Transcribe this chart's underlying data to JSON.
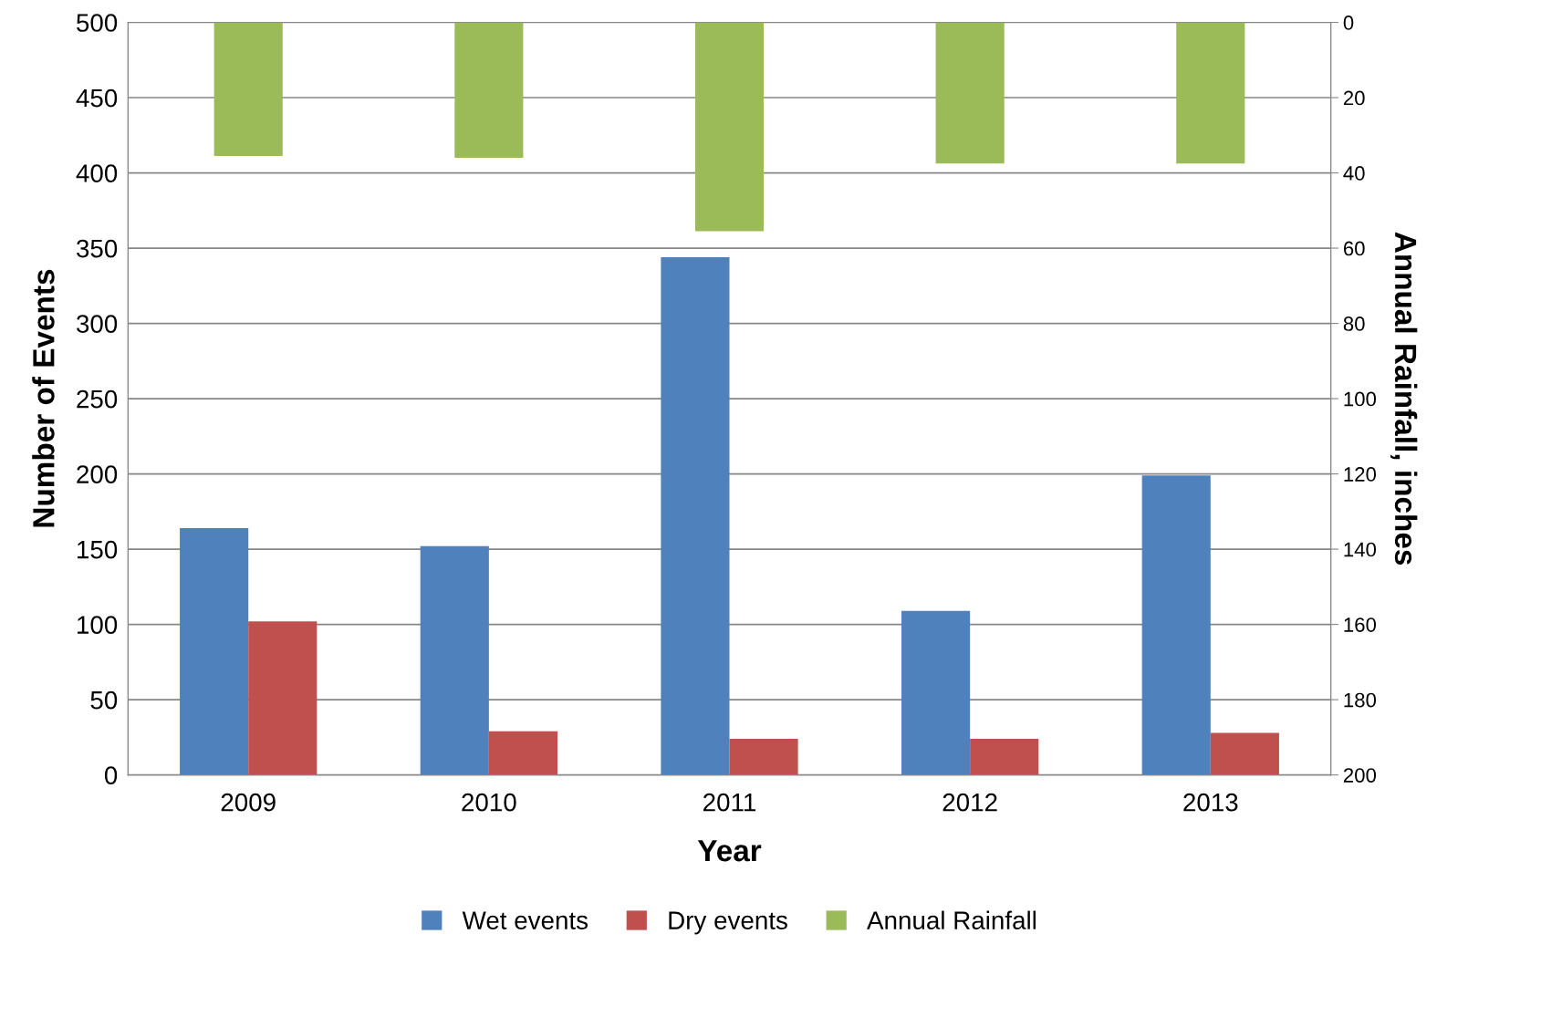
{
  "chart_data": {
    "type": "bar",
    "xlabel": "Year",
    "ylabel": "Number of Events",
    "y2label": "Annual Rainfall, inches",
    "categories": [
      "2009",
      "2010",
      "2011",
      "2012",
      "2013"
    ],
    "series": [
      {
        "name": "Wet events",
        "color": "#4f81bd",
        "values": [
          164,
          152,
          344,
          109,
          199
        ]
      },
      {
        "name": "Dry events",
        "color": "#c0504d",
        "values": [
          102,
          29,
          24,
          24,
          28
        ]
      },
      {
        "name": "Annual Rainfall",
        "color": "#9bbb59",
        "values": [
          35.5,
          36,
          55.5,
          37.5,
          37.5
        ],
        "axis": "y2"
      }
    ],
    "ylim": [
      0,
      500
    ],
    "yticks": [
      0,
      50,
      100,
      150,
      200,
      250,
      300,
      350,
      400,
      450,
      500
    ],
    "y2lim": [
      200,
      0
    ],
    "y2ticks": [
      0,
      20,
      40,
      60,
      80,
      100,
      120,
      140,
      160,
      180,
      200
    ],
    "grid": "y",
    "legend": "bottom"
  }
}
